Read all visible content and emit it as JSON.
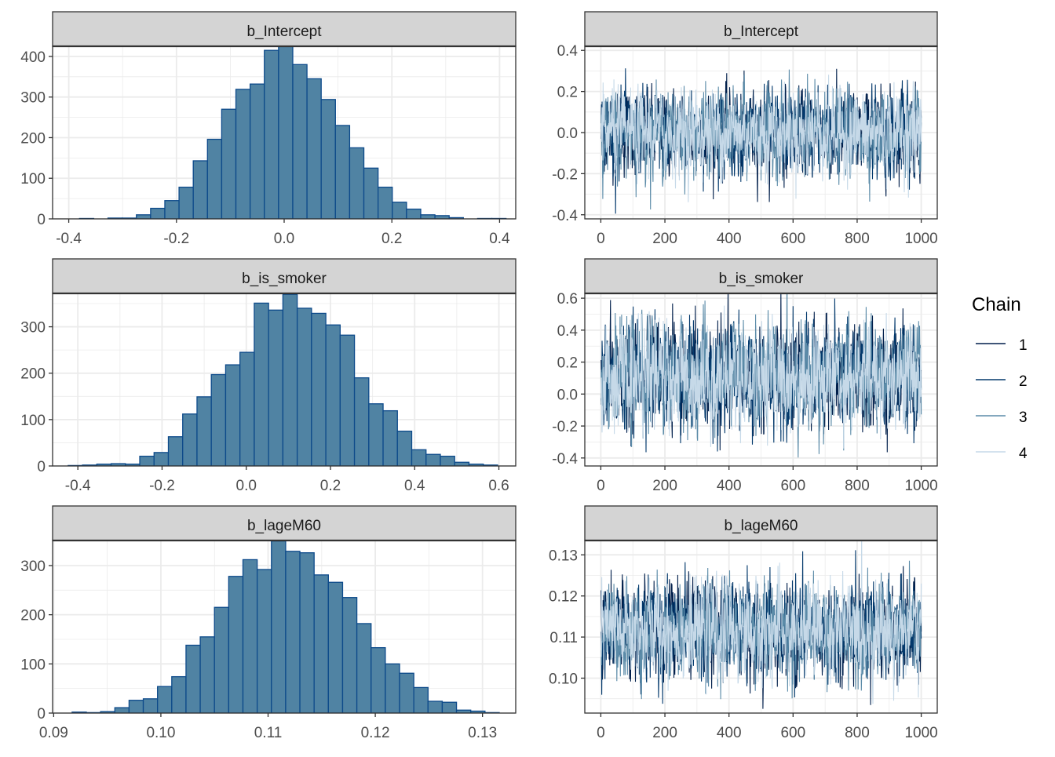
{
  "chart_data": [
    {
      "type": "bar",
      "panel": "histogram",
      "title": "b_Intercept",
      "bin_start": -0.38,
      "bin_width": 0.0264,
      "values": [
        1,
        0,
        2,
        2,
        10,
        26,
        45,
        78,
        143,
        196,
        270,
        319,
        332,
        415,
        425,
        380,
        345,
        294,
        230,
        175,
        125,
        78,
        41,
        24,
        10,
        8,
        3,
        0,
        1,
        1
      ],
      "xticks": [
        -0.4,
        -0.2,
        0.0,
        0.2,
        0.4
      ],
      "xtick_labels": [
        "-0.4",
        "-0.2",
        "0.0",
        "0.2",
        "0.4"
      ],
      "yticks": [
        0,
        100,
        200,
        300,
        400
      ],
      "ytick_labels": [
        "0",
        "100",
        "200",
        "300",
        "400"
      ],
      "xlim": [
        -0.43,
        0.43
      ],
      "ylim": [
        0,
        425
      ]
    },
    {
      "type": "line",
      "panel": "trace",
      "title": "b_Intercept",
      "iterations": 1000,
      "chain_mean": 0.0,
      "chain_sd": 0.1,
      "xticks": [
        0,
        200,
        400,
        600,
        800,
        1000
      ],
      "xtick_labels": [
        "0",
        "200",
        "400",
        "600",
        "800",
        "1000"
      ],
      "yticks": [
        -0.4,
        -0.2,
        0.0,
        0.2,
        0.4
      ],
      "ytick_labels": [
        "-0.4",
        "-0.2",
        "0.0",
        "0.2",
        "0.4"
      ],
      "xlim": [
        -50,
        1050
      ],
      "ylim": [
        -0.42,
        0.42
      ]
    },
    {
      "type": "bar",
      "panel": "histogram",
      "title": "b_is_smoker",
      "bin_start": -0.423,
      "bin_width": 0.034,
      "values": [
        1,
        2,
        4,
        5,
        4,
        21,
        29,
        63,
        112,
        149,
        197,
        218,
        245,
        351,
        336,
        370,
        340,
        329,
        304,
        282,
        190,
        134,
        119,
        75,
        35,
        25,
        21,
        8,
        4,
        2
      ],
      "xticks": [
        -0.4,
        -0.2,
        0.0,
        0.2,
        0.4,
        0.6
      ],
      "xtick_labels": [
        "-0.4",
        "-0.2",
        "0.0",
        "0.2",
        "0.4",
        "0.6"
      ],
      "yticks": [
        0,
        100,
        200,
        300
      ],
      "ytick_labels": [
        "0",
        "100",
        "200",
        "300"
      ],
      "xlim": [
        -0.46,
        0.64
      ],
      "ylim": [
        0,
        372
      ]
    },
    {
      "type": "line",
      "panel": "trace",
      "title": "b_is_smoker",
      "iterations": 1000,
      "chain_mean": 0.11,
      "chain_sd": 0.16,
      "xticks": [
        0,
        200,
        400,
        600,
        800,
        1000
      ],
      "xtick_labels": [
        "0",
        "200",
        "400",
        "600",
        "800",
        "1000"
      ],
      "yticks": [
        -0.4,
        -0.2,
        0.0,
        0.2,
        0.4,
        0.6
      ],
      "ytick_labels": [
        "-0.4",
        "-0.2",
        "0.0",
        "0.2",
        "0.4",
        "0.6"
      ],
      "xlim": [
        -50,
        1050
      ],
      "ylim": [
        -0.45,
        0.63
      ]
    },
    {
      "type": "bar",
      "panel": "histogram",
      "title": "b_lageM60",
      "bin_start": 0.09172,
      "bin_width": 0.001328,
      "values": [
        2,
        1,
        3,
        11,
        26,
        29,
        54,
        74,
        138,
        155,
        215,
        278,
        312,
        292,
        350,
        329,
        326,
        281,
        266,
        235,
        182,
        133,
        100,
        81,
        52,
        24,
        22,
        6,
        4,
        1
      ],
      "xticks": [
        0.09,
        0.1,
        0.11,
        0.12,
        0.13
      ],
      "xtick_labels": [
        "0.09",
        "0.10",
        "0.11",
        "0.12",
        "0.13"
      ],
      "yticks": [
        0,
        100,
        200,
        300
      ],
      "ytick_labels": [
        "0",
        "100",
        "200",
        "300"
      ],
      "xlim": [
        0.0899,
        0.1331
      ],
      "ylim": [
        0,
        351
      ]
    },
    {
      "type": "line",
      "panel": "trace",
      "title": "b_lageM60",
      "iterations": 1000,
      "chain_mean": 0.1115,
      "chain_sd": 0.0056,
      "xticks": [
        0,
        200,
        400,
        600,
        800,
        1000
      ],
      "xtick_labels": [
        "0",
        "200",
        "400",
        "600",
        "800",
        "1000"
      ],
      "yticks": [
        0.1,
        0.11,
        0.12,
        0.13
      ],
      "ytick_labels": [
        "0.10",
        "0.11",
        "0.12",
        "0.13"
      ],
      "xlim": [
        -50,
        1050
      ],
      "ylim": [
        0.0915,
        0.1335
      ]
    }
  ],
  "legend": {
    "title": "Chain",
    "placement": "right",
    "items": [
      {
        "label": "1",
        "color": "#011f4b"
      },
      {
        "label": "2",
        "color": "#03396c"
      },
      {
        "label": "3",
        "color": "#5b8ba8"
      },
      {
        "label": "4",
        "color": "#c6d9e8"
      }
    ]
  },
  "colors": {
    "hist_fill": "#5083a3",
    "hist_outline": "#0d4a8a",
    "strip_fill": "#d4d4d4",
    "grid": "#ebebeb"
  }
}
